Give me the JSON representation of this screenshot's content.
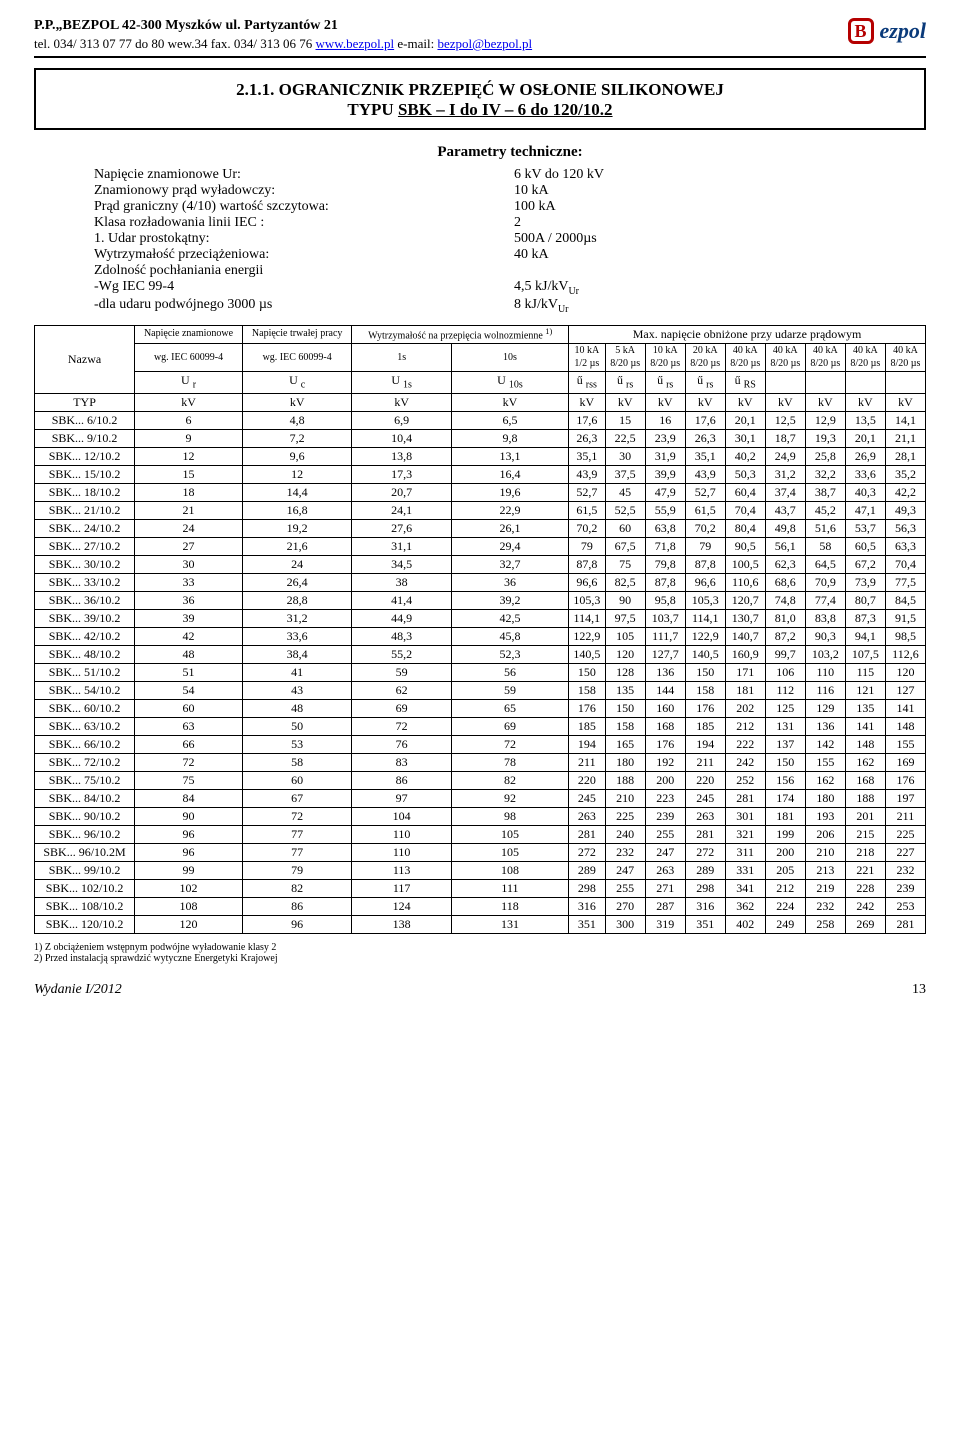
{
  "header": {
    "company": "P.P.„BEZPOL 42-300 Myszków   ul. Partyzantów 21",
    "contact_prefix": "tel. 034/ 313 07 77 do 80  wew.34  fax. 034/ 313 06 76  ",
    "url": "www.bezpol.pl",
    "email_prefix": "     e-mail: ",
    "email": "bezpol@bezpol.pl",
    "logo_text": "ezpol"
  },
  "title": {
    "line1": "2.1.1. OGRANICZNIK PRZEPIĘĆ W OSŁONIE SILIKONOWEJ",
    "line2_pre": "TYPU ",
    "line2_u": "SBK – I do IV – 6 do 120/10.2"
  },
  "params": {
    "heading": "Parametry techniczne:",
    "rows": [
      {
        "label": "Napięcie znamionowe Ur:",
        "value": "6 kV do 120 kV"
      },
      {
        "label": "Znamionowy prąd wyładowczy:",
        "value": "10 kA"
      },
      {
        "label": "Prąd graniczny (4/10) wartość szczytowa:",
        "value": "100 kA"
      },
      {
        "label": "Klasa rozładowania linii  IEC   :",
        "value": "2"
      },
      {
        "label": "1.  Udar prostokątny:",
        "value": "500A / 2000µs"
      },
      {
        "label": "Wytrzymałość przeciążeniowa:",
        "value": "40 kA"
      },
      {
        "label": "Zdolność pochłaniania energii",
        "value": ""
      },
      {
        "label": "-Wg IEC 99-4",
        "value": "4,5 kJ/kV",
        "sub": "Ur"
      },
      {
        "label": "-dla udaru podwójnego 3000 µs",
        "value": "8  kJ/kV",
        "sub": "Ur"
      }
    ]
  },
  "table": {
    "group_headers": {
      "nazwa": "Nazwa",
      "u_znam": "Napięcie znamionowe",
      "u_praca": "Napięcie trwałej pracy",
      "wytrz": "Wytrzymałość na przepięcia wolnozmienne ",
      "wytrz_sup": "1)",
      "max": "Max. napięcie obniżone przy udarze prądowym"
    },
    "sub_headers": {
      "iec": "wg. IEC 60099-4",
      "s1": "1s",
      "s10": "10s",
      "c10ka": "10 kA\n1/2 µs",
      "c5ka": "5 kA\n8/20 µs",
      "c10ka2": "10 kA\n8/20 µs",
      "c20ka": "20 kA\n8/20 µs",
      "c40ka1": "40 kA\n8/20 µs",
      "c40ka2": "40 kA\n8/20 µs",
      "c40ka3": "40 kA\n8/20 µs",
      "c40ka4": "40 kA\n8/20 µs",
      "c40ka5": "40 kA\n8/20 µs"
    },
    "sym_row": [
      "U r",
      "U c",
      "U 1s",
      "U 10s",
      "ű rss",
      "ű rs",
      "ű rs",
      "ű rs",
      "ű RS",
      "",
      "",
      "",
      ""
    ],
    "unit_row_label": "TYP",
    "unit": "kV",
    "rows": [
      [
        "SBK...   6/10.2",
        "6",
        "4,8",
        "6,9",
        "6,5",
        "17,6",
        "15",
        "16",
        "17,6",
        "20,1",
        "12,5",
        "12,9",
        "13,5",
        "14,1"
      ],
      [
        "SBK...   9/10.2",
        "9",
        "7,2",
        "10,4",
        "9,8",
        "26,3",
        "22,5",
        "23,9",
        "26,3",
        "30,1",
        "18,7",
        "19,3",
        "20,1",
        "21,1"
      ],
      [
        "SBK...  12/10.2",
        "12",
        "9,6",
        "13,8",
        "13,1",
        "35,1",
        "30",
        "31,9",
        "35,1",
        "40,2",
        "24,9",
        "25,8",
        "26,9",
        "28,1"
      ],
      [
        "SBK...  15/10.2",
        "15",
        "12",
        "17,3",
        "16,4",
        "43,9",
        "37,5",
        "39,9",
        "43,9",
        "50,3",
        "31,2",
        "32,2",
        "33,6",
        "35,2"
      ],
      [
        "SBK...  18/10.2",
        "18",
        "14,4",
        "20,7",
        "19,6",
        "52,7",
        "45",
        "47,9",
        "52,7",
        "60,4",
        "37,4",
        "38,7",
        "40,3",
        "42,2"
      ],
      [
        "SBK...  21/10.2",
        "21",
        "16,8",
        "24,1",
        "22,9",
        "61,5",
        "52,5",
        "55,9",
        "61,5",
        "70,4",
        "43,7",
        "45,2",
        "47,1",
        "49,3"
      ],
      [
        "SBK...  24/10.2",
        "24",
        "19,2",
        "27,6",
        "26,1",
        "70,2",
        "60",
        "63,8",
        "70,2",
        "80,4",
        "49,8",
        "51,6",
        "53,7",
        "56,3"
      ],
      [
        "SBK...  27/10.2",
        "27",
        "21,6",
        "31,1",
        "29,4",
        "79",
        "67,5",
        "71,8",
        "79",
        "90,5",
        "56,1",
        "58",
        "60,5",
        "63,3"
      ],
      [
        "SBK...  30/10.2",
        "30",
        "24",
        "34,5",
        "32,7",
        "87,8",
        "75",
        "79,8",
        "87,8",
        "100,5",
        "62,3",
        "64,5",
        "67,2",
        "70,4"
      ],
      [
        "SBK...  33/10.2",
        "33",
        "26,4",
        "38",
        "36",
        "96,6",
        "82,5",
        "87,8",
        "96,6",
        "110,6",
        "68,6",
        "70,9",
        "73,9",
        "77,5"
      ],
      [
        "SBK...  36/10.2",
        "36",
        "28,8",
        "41,4",
        "39,2",
        "105,3",
        "90",
        "95,8",
        "105,3",
        "120,7",
        "74,8",
        "77,4",
        "80,7",
        "84,5"
      ],
      [
        "SBK...  39/10.2",
        "39",
        "31,2",
        "44,9",
        "42,5",
        "114,1",
        "97,5",
        "103,7",
        "114,1",
        "130,7",
        "81,0",
        "83,8",
        "87,3",
        "91,5"
      ],
      [
        "SBK...  42/10.2",
        "42",
        "33,6",
        "48,3",
        "45,8",
        "122,9",
        "105",
        "111,7",
        "122,9",
        "140,7",
        "87,2",
        "90,3",
        "94,1",
        "98,5"
      ],
      [
        "SBK...  48/10.2",
        "48",
        "38,4",
        "55,2",
        "52,3",
        "140,5",
        "120",
        "127,7",
        "140,5",
        "160,9",
        "99,7",
        "103,2",
        "107,5",
        "112,6"
      ],
      [
        "SBK...  51/10.2",
        "51",
        "41",
        "59",
        "56",
        "150",
        "128",
        "136",
        "150",
        "171",
        "106",
        "110",
        "115",
        "120"
      ],
      [
        "SBK...  54/10.2",
        "54",
        "43",
        "62",
        "59",
        "158",
        "135",
        "144",
        "158",
        "181",
        "112",
        "116",
        "121",
        "127"
      ],
      [
        "SBK...  60/10.2",
        "60",
        "48",
        "69",
        "65",
        "176",
        "150",
        "160",
        "176",
        "202",
        "125",
        "129",
        "135",
        "141"
      ],
      [
        "SBK...  63/10.2",
        "63",
        "50",
        "72",
        "69",
        "185",
        "158",
        "168",
        "185",
        "212",
        "131",
        "136",
        "141",
        "148"
      ],
      [
        "SBK...  66/10.2",
        "66",
        "53",
        "76",
        "72",
        "194",
        "165",
        "176",
        "194",
        "222",
        "137",
        "142",
        "148",
        "155"
      ],
      [
        "SBK...  72/10.2",
        "72",
        "58",
        "83",
        "78",
        "211",
        "180",
        "192",
        "211",
        "242",
        "150",
        "155",
        "162",
        "169"
      ],
      [
        "SBK...  75/10.2",
        "75",
        "60",
        "86",
        "82",
        "220",
        "188",
        "200",
        "220",
        "252",
        "156",
        "162",
        "168",
        "176"
      ],
      [
        "SBK...  84/10.2",
        "84",
        "67",
        "97",
        "92",
        "245",
        "210",
        "223",
        "245",
        "281",
        "174",
        "180",
        "188",
        "197"
      ],
      [
        "SBK...  90/10.2",
        "90",
        "72",
        "104",
        "98",
        "263",
        "225",
        "239",
        "263",
        "301",
        "181",
        "193",
        "201",
        "211"
      ],
      [
        "SBK...  96/10.2",
        "96",
        "77",
        "110",
        "105",
        "281",
        "240",
        "255",
        "281",
        "321",
        "199",
        "206",
        "215",
        "225"
      ],
      [
        "SBK...  96/10.2M",
        "96",
        "77",
        "110",
        "105",
        "272",
        "232",
        "247",
        "272",
        "311",
        "200",
        "210",
        "218",
        "227"
      ],
      [
        "SBK...  99/10.2",
        "99",
        "79",
        "113",
        "108",
        "289",
        "247",
        "263",
        "289",
        "331",
        "205",
        "213",
        "221",
        "232"
      ],
      [
        "SBK... 102/10.2",
        "102",
        "82",
        "117",
        "111",
        "298",
        "255",
        "271",
        "298",
        "341",
        "212",
        "219",
        "228",
        "239"
      ],
      [
        "SBK... 108/10.2",
        "108",
        "86",
        "124",
        "118",
        "316",
        "270",
        "287",
        "316",
        "362",
        "224",
        "232",
        "242",
        "253"
      ],
      [
        "SBK... 120/10.2",
        "120",
        "96",
        "138",
        "131",
        "351",
        "300",
        "319",
        "351",
        "402",
        "249",
        "258",
        "269",
        "281"
      ]
    ]
  },
  "footnotes": [
    "1) Z obciążeniem wstępnym podwójne wyładowanie klasy 2",
    "2) Przed instalacją sprawdzić wytyczne Energetyki Krajowej"
  ],
  "footer": {
    "edition": "Wydanie I/2012",
    "page": "13"
  }
}
